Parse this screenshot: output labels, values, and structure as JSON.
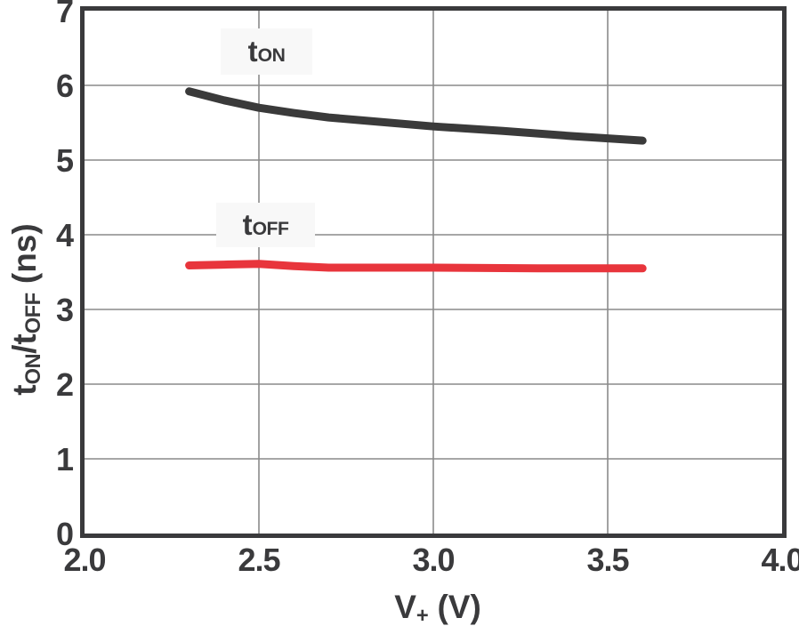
{
  "figure": {
    "xlabel_parts": {
      "main": "V",
      "sub": "+",
      "unit": " (V)"
    },
    "ylabel_parts": {
      "t1": "t",
      "sub1": "ON",
      "t2": "/t",
      "sub2": "OFF",
      "unit": " (ns)"
    },
    "curve_labels": {
      "on": {
        "main": "t",
        "sub": "ON"
      },
      "off": {
        "main": "t",
        "sub": "OFF"
      }
    }
  },
  "colors": {
    "axis_and_text": "#3a3a3c",
    "grid": "#8a8a8a",
    "ton_curve": "#3a3a3a",
    "toff_curve": "#e8353c",
    "label_box_bg": "#f8f8f8",
    "background": "#ffffff"
  },
  "chart_data": {
    "type": "line",
    "title": "",
    "xlabel": "V+ (V)",
    "ylabel": "tON/tOFF (ns)",
    "xlim": [
      2.0,
      4.0
    ],
    "ylim": [
      0,
      7
    ],
    "grid": true,
    "legend_position": "inline-labels",
    "xticks": [
      2.0,
      2.5,
      3.0,
      3.5,
      4.0
    ],
    "yticks": [
      0,
      1,
      2,
      3,
      4,
      5,
      6,
      7
    ],
    "xtick_labels": [
      "2.0",
      "2.5",
      "3.0",
      "3.5",
      "4.0"
    ],
    "ytick_labels": [
      "0",
      "1",
      "2",
      "3",
      "4",
      "5",
      "6",
      "7"
    ],
    "line_width": 9,
    "series": [
      {
        "name": "tON",
        "color": "#3a3a3a",
        "x": [
          2.3,
          2.4,
          2.5,
          2.6,
          2.7,
          2.8,
          3.0,
          3.2,
          3.4,
          3.6
        ],
        "y": [
          5.92,
          5.8,
          5.7,
          5.63,
          5.57,
          5.53,
          5.45,
          5.39,
          5.32,
          5.26
        ]
      },
      {
        "name": "tOFF",
        "color": "#e8353c",
        "x": [
          2.3,
          2.4,
          2.5,
          2.6,
          2.7,
          3.0,
          3.3,
          3.6
        ],
        "y": [
          3.59,
          3.6,
          3.61,
          3.58,
          3.56,
          3.56,
          3.55,
          3.55
        ]
      }
    ]
  }
}
